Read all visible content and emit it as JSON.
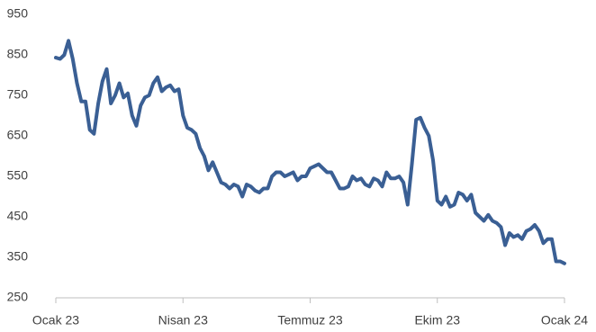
{
  "chart_data": {
    "type": "line",
    "categories": [
      "Ocak 23",
      null,
      null,
      null,
      null,
      null,
      null,
      null,
      null,
      null,
      null,
      null,
      null,
      null,
      null,
      null,
      null,
      null,
      null,
      null,
      null,
      null,
      null,
      null,
      null,
      null,
      null,
      null,
      null,
      null,
      "Nisan 23",
      null,
      null,
      null,
      null,
      null,
      null,
      null,
      null,
      null,
      null,
      null,
      null,
      null,
      null,
      null,
      null,
      null,
      null,
      null,
      null,
      null,
      null,
      null,
      null,
      null,
      null,
      null,
      null,
      null,
      "Temmuz 23",
      null,
      null,
      null,
      null,
      null,
      null,
      null,
      null,
      null,
      null,
      null,
      null,
      null,
      null,
      null,
      null,
      null,
      null,
      null,
      null,
      null,
      null,
      null,
      null,
      null,
      null,
      null,
      null,
      null,
      "Ekim 23",
      null,
      null,
      null,
      null,
      null,
      null,
      null,
      null,
      null,
      null,
      null,
      null,
      null,
      null,
      null,
      null,
      null,
      null,
      null,
      null,
      null,
      null,
      null,
      null,
      null,
      null,
      null,
      null,
      null,
      "Ocak 24"
    ],
    "series": [
      {
        "color": "#3a5f94",
        "values": [
          843,
          840,
          850,
          885,
          840,
          780,
          735,
          735,
          665,
          655,
          730,
          785,
          815,
          730,
          750,
          780,
          745,
          755,
          700,
          675,
          725,
          745,
          750,
          780,
          795,
          760,
          770,
          775,
          760,
          765,
          700,
          670,
          665,
          655,
          620,
          600,
          565,
          585,
          560,
          535,
          530,
          520,
          530,
          525,
          500,
          530,
          525,
          515,
          510,
          520,
          520,
          550,
          560,
          560,
          550,
          555,
          560,
          540,
          550,
          550,
          570,
          575,
          580,
          570,
          560,
          560,
          540,
          520,
          520,
          525,
          550,
          540,
          545,
          530,
          525,
          545,
          540,
          525,
          560,
          545,
          545,
          550,
          535,
          480,
          580,
          690,
          695,
          670,
          650,
          590,
          490,
          480,
          500,
          475,
          480,
          510,
          505,
          490,
          505,
          460,
          450,
          440,
          455,
          440,
          435,
          425,
          380,
          410,
          400,
          405,
          395,
          415,
          420,
          430,
          415,
          385,
          395,
          395,
          340,
          340,
          335
        ]
      }
    ],
    "ylim": [
      250,
      950
    ],
    "yticks": [
      250,
      350,
      450,
      550,
      650,
      750,
      850,
      950
    ],
    "grid": false
  }
}
